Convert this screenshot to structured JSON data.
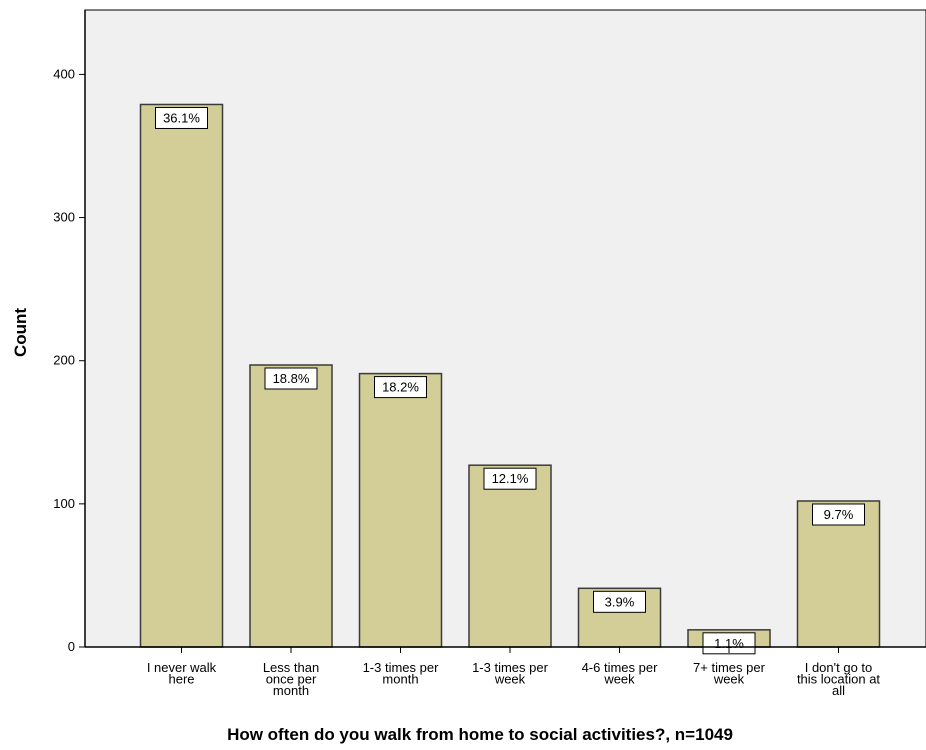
{
  "chart_data": {
    "type": "bar",
    "categories": [
      [
        "I never walk",
        "here"
      ],
      [
        "Less than",
        "once per",
        "month"
      ],
      [
        "1-3 times per",
        "month"
      ],
      [
        "1-3 times per",
        "week"
      ],
      [
        "4-6 times per",
        "week"
      ],
      [
        "7+ times per",
        "week"
      ],
      [
        "I don't go to",
        "this location at",
        "all"
      ]
    ],
    "values": [
      379,
      197,
      191,
      127,
      41,
      12,
      102
    ],
    "data_labels": [
      "36.1%",
      "18.8%",
      "18.2%",
      "12.1%",
      "3.9%",
      "1.1%",
      "9.7%"
    ],
    "title": "",
    "xlabel": "How often do you walk from home to social activities?, n=1049",
    "ylabel": "Count",
    "ylim": [
      0,
      445
    ],
    "yticks": [
      0,
      100,
      200,
      300,
      400
    ],
    "grid": false,
    "colors": {
      "plot_background": "#f0f0f0",
      "bar_fill": "#d3ce97",
      "bar_stroke": "#3b3b3b",
      "axis": "#000000",
      "label_box_fill": "#ffffff",
      "label_box_stroke": "#000000"
    }
  }
}
